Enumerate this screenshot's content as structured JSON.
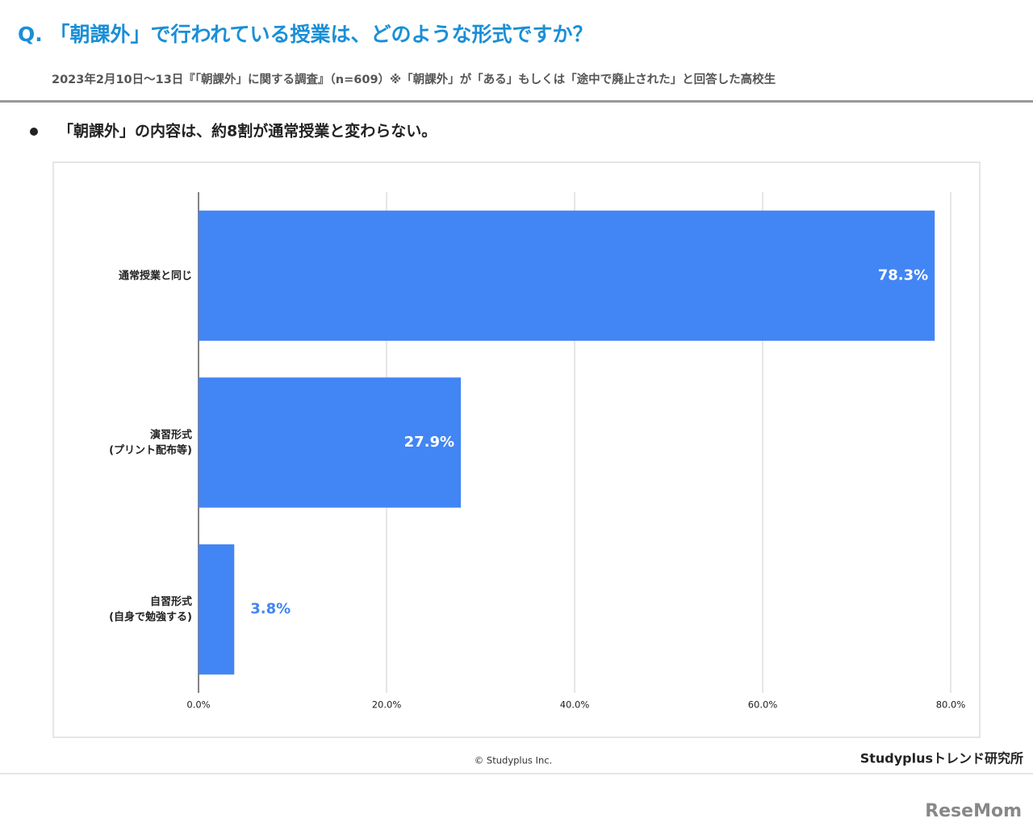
{
  "header": {
    "title": "Q. 「朝課外」で行われている授業は、どのような形式ですか？",
    "subtitle": "2023年2月10日～13日『「朝課外」に関する調査』（n=609）※「朝課外」が「ある」もしくは「途中で廃止された」と回答した高校生",
    "headline": "「朝課外」の内容は、約8割が通常授業と変わらない。"
  },
  "chart_data": {
    "type": "bar",
    "orientation": "horizontal",
    "categories": [
      [
        "通常授業と同じ"
      ],
      [
        "演習形式",
        "(プリント配布等)"
      ],
      [
        "自習形式",
        "(自身で勉強する)"
      ]
    ],
    "values": [
      78.3,
      27.9,
      3.8
    ],
    "value_labels": [
      "78.3%",
      "27.9%",
      "3.8%"
    ],
    "color": "#4285f4",
    "xlim": [
      0,
      80
    ],
    "xticks": [
      {
        "value": 0,
        "label": "0.0%"
      },
      {
        "value": 20,
        "label": "20.0%"
      },
      {
        "value": 40,
        "label": "40.0%"
      },
      {
        "value": 60,
        "label": "60.0%"
      },
      {
        "value": 80,
        "label": "80.0%"
      }
    ],
    "grid": true
  },
  "footer": {
    "copyright": "© Studyplus Inc.",
    "brand": "Studyplusトレンド研究所",
    "watermark": "ReseMom"
  }
}
